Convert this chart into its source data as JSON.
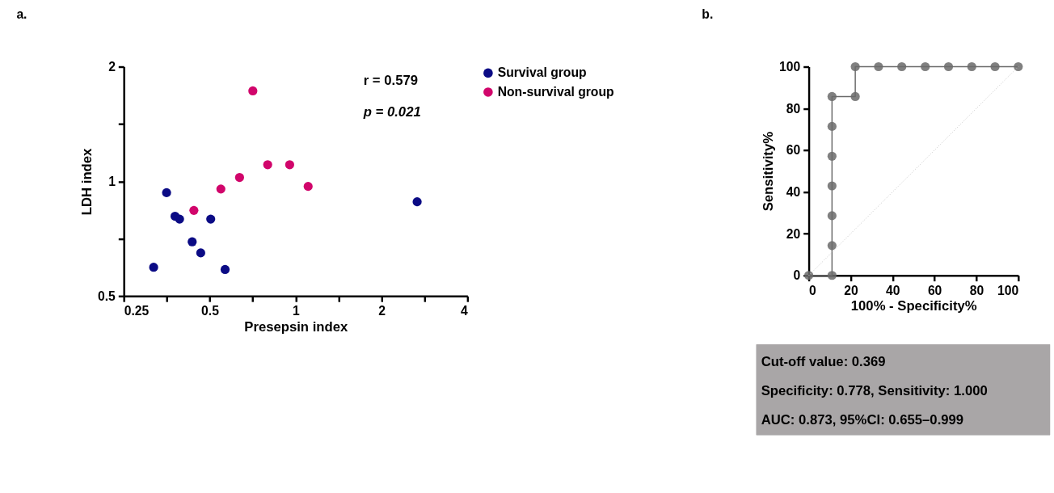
{
  "chart_data": [
    {
      "type": "scatter",
      "title": "a.",
      "xlabel": "Presepsin index",
      "ylabel": "LDH index",
      "log": "xy",
      "xlim": [
        0.25,
        4
      ],
      "ylim": [
        0.5,
        2
      ],
      "xticks": [
        0.25,
        {
          "value": 0.354,
          "label": null
        },
        0.5,
        {
          "value": 0.707,
          "label": null
        },
        1,
        {
          "value": 1.414,
          "label": null
        },
        2,
        {
          "value": 2.828,
          "label": null
        },
        4
      ],
      "yticks": [
        0.5,
        {
          "value": 0.707,
          "label": null
        },
        1,
        {
          "value": 1.414,
          "label": null
        },
        2
      ],
      "grid": false,
      "legend": "top right",
      "marker": "circle",
      "annotations": [
        "r = 0.579",
        "p = 0.021"
      ],
      "series": [
        {
          "name": "Survival group",
          "color": "#0b0b85",
          "x": [
            0.353,
            0.378,
            0.392,
            0.504,
            0.434,
            0.465,
            0.318,
            0.566,
            2.665
          ],
          "values": [
            0.934,
            0.81,
            0.796,
            0.796,
            0.694,
            0.649,
            0.595,
            0.587,
            0.884
          ]
        },
        {
          "name": "Non-survival group",
          "color": "#d1056b",
          "x": [
            0.708,
            0.44,
            0.547,
            0.636,
            0.798,
            0.953,
            1.106
          ],
          "values": [
            1.728,
            0.839,
            0.955,
            1.024,
            1.106,
            1.106,
            0.97
          ]
        }
      ]
    },
    {
      "type": "line",
      "title": "b.",
      "xlabel": "100% - Specificity%",
      "ylabel": "Sensitivity%",
      "xlim": [
        0,
        100
      ],
      "ylim": [
        0,
        100
      ],
      "xticks": [
        0,
        20,
        40,
        60,
        80,
        100
      ],
      "yticks": [
        0,
        20,
        40,
        60,
        80,
        100
      ],
      "grid": false,
      "legend": false,
      "annotations": [
        "Cut-off value: 0.369",
        "Specificity: 0.778, Sensitivity: 1.000",
        "AUC: 0.873, 95%CI: 0.655–0.999"
      ],
      "series": [
        {
          "color": "#6a6a6a",
          "marker": "circle",
          "line_style": "solid",
          "x": [
            0,
            11.1,
            11.1,
            11.1,
            11.1,
            11.1,
            11.1,
            11.1,
            22.2,
            22.2,
            33.3,
            44.4,
            55.6,
            66.7,
            77.8,
            88.9,
            100
          ],
          "values": [
            0,
            0,
            14.3,
            28.6,
            42.9,
            57.1,
            71.4,
            85.7,
            85.7,
            100,
            100,
            100,
            100,
            100,
            100,
            100,
            100
          ]
        },
        {
          "color": "#c4c4c4",
          "marker": "none",
          "line_style": "dotted",
          "x": [
            0,
            100
          ],
          "values": [
            0,
            100
          ]
        }
      ]
    }
  ]
}
